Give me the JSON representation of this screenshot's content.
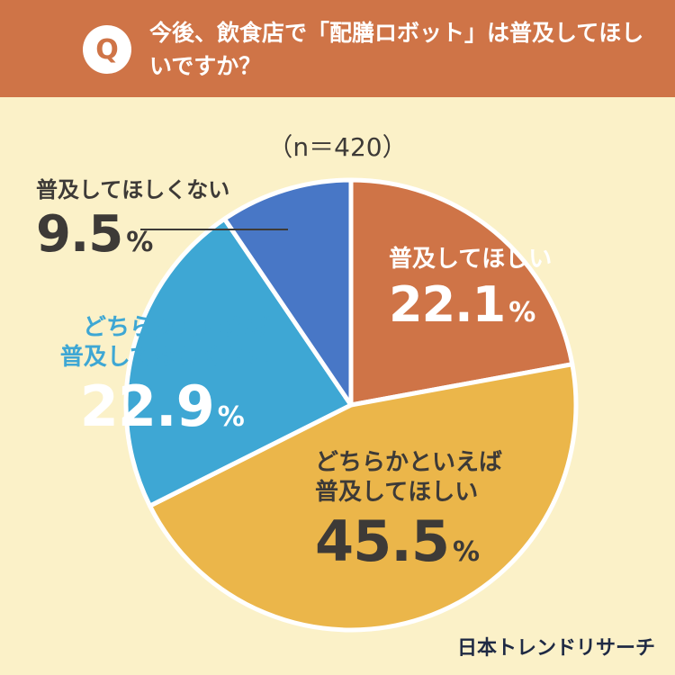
{
  "header": {
    "badge": "Q",
    "question": "今後、飲食店で「配膳ロボット」は普及してほしいですか？"
  },
  "sample_label": "（n＝420）",
  "brand": "日本トレンドリサーチ",
  "unit": "%",
  "colors": {
    "header": "#cf7447",
    "background": "#fbf1c8",
    "slice_1": "#cf7447",
    "slice_2": "#ebb64a",
    "slice_3": "#3ea7d4",
    "slice_4": "#4877c6"
  },
  "chart_data": {
    "type": "pie",
    "title": "今後、飲食店で「配膳ロボット」は普及してほしいですか？",
    "start": "12 o'clock, clockwise",
    "slices": [
      {
        "label": "普及してほしい",
        "value": 22.1,
        "display": "22.1",
        "color": "#cf7447"
      },
      {
        "label": "どちらかといえば 普及してほしい",
        "value": 45.5,
        "display": "45.5",
        "color": "#ebb64a"
      },
      {
        "label": "どちらかといえば 普及してほしくない",
        "value": 22.9,
        "display": "22.9",
        "color": "#3ea7d4"
      },
      {
        "label": "普及してほしくない",
        "value": 9.5,
        "display": "9.5",
        "color": "#4877c6"
      }
    ]
  }
}
